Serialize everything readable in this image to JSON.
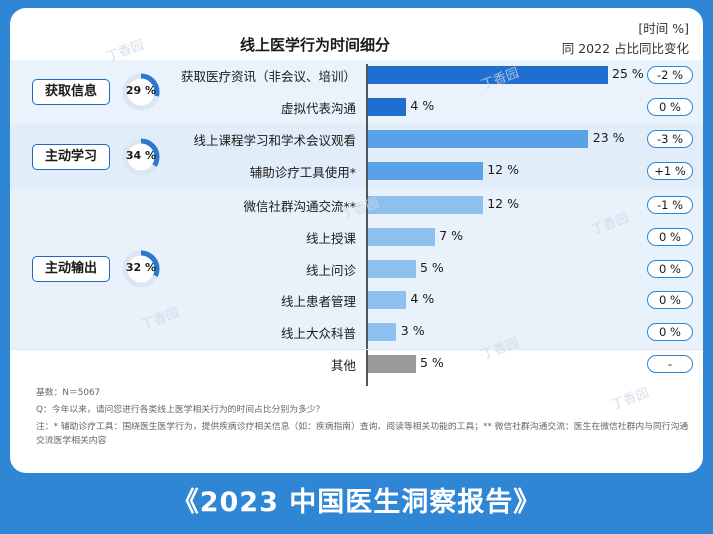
{
  "footer_title": "《2023 中国医生洞察报告》",
  "watermark": "丁香园",
  "chart_data": {
    "type": "bar",
    "title": "线上医学行为时间细分",
    "unit_label": "[时间 %]",
    "change_header": "同 2022 占比同比变化",
    "groups": [
      {
        "name": "获取信息",
        "percent_label": "29 %",
        "percent": 29
      },
      {
        "name": "主动学习",
        "percent_label": "34 %",
        "percent": 34
      },
      {
        "name": "主动输出",
        "percent_label": "32 %",
        "percent": 32
      }
    ],
    "categories": [
      "获取医疗资讯（非会议、培训）",
      "虚拟代表沟通",
      "线上课程学习和学术会议观看",
      "辅助诊疗工具使用*",
      "微信社群沟通交流**",
      "线上授课",
      "线上问诊",
      "线上患者管理",
      "线上大众科普",
      "其他"
    ],
    "values": [
      25,
      4,
      23,
      12,
      12,
      7,
      5,
      4,
      3,
      5
    ],
    "value_labels": [
      "25 %",
      "4 %",
      "23 %",
      "12 %",
      "12 %",
      "7 %",
      "5 %",
      "4 %",
      "3 %",
      "5 %"
    ],
    "changes": [
      "-2 %",
      "0 %",
      "-3 %",
      "+1 %",
      "-1 %",
      "0 %",
      "0 %",
      "0 %",
      "0 %",
      "-"
    ],
    "group_index": [
      0,
      0,
      1,
      1,
      2,
      2,
      2,
      2,
      2,
      -1
    ],
    "colors": {
      "group0": "#1f6fd0",
      "group1": "#5aa2e6",
      "group2": "#8ec0ef",
      "other": "#9a9a9a",
      "band0": "#eaf2fb",
      "band1": "#e1edf9",
      "band2": "#e9f2fb",
      "donut_track": "#d9e6f3",
      "donut_fill": "#2a78d0"
    },
    "xlim": [
      0,
      25
    ]
  },
  "notes": {
    "base": "基数：N＝5067",
    "question": "Q：今年以来，请问您进行各类线上医学相关行为的时间占比分别为多少？",
    "footnote": "注：* 辅助诊疗工具：围绕医生医学行为，提供疾病诊疗相关信息（如：疾病指南）查询、阅读等相关功能的工具；** 微信社群沟通交流：医生在微信社群内与同行沟通交流医学相关内容"
  }
}
